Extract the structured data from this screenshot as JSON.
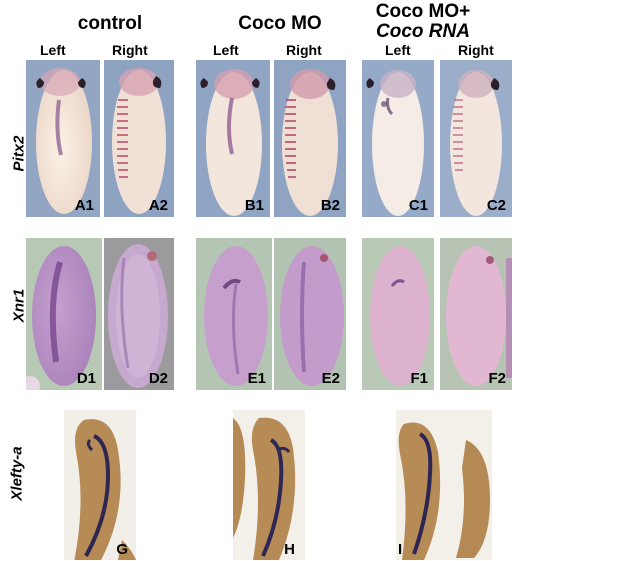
{
  "groups": [
    {
      "title_line1": "control",
      "title_line2": ""
    },
    {
      "title_line1": "Coco MO",
      "title_line2": ""
    },
    {
      "title_line1": "Coco MO+",
      "title_line2": "Coco RNA"
    }
  ],
  "sides": {
    "left": "Left",
    "right": "Right"
  },
  "rows": [
    {
      "gene": "Pitx2"
    },
    {
      "gene": "Xnr1"
    },
    {
      "gene": "Xlefty-a"
    }
  ],
  "panel_labels": {
    "A1": "A1",
    "A2": "A2",
    "B1": "B1",
    "B2": "B2",
    "C1": "C1",
    "C2": "C2",
    "D1": "D1",
    "D2": "D2",
    "E1": "E1",
    "E2": "E2",
    "F1": "F1",
    "F2": "F2",
    "G": "G",
    "H": "H",
    "I": "I"
  },
  "colors": {
    "pitx2_bg": "#8fa3c2",
    "xnr1_bg": "#b8c9b6",
    "embryo_cream": "#f1e3d4",
    "stain_purple": "#7a3f86",
    "xlefty_bg": "#f3f0ea",
    "xlefty_embryo": "#b28a55",
    "xlefty_stain": "#2a2350"
  }
}
